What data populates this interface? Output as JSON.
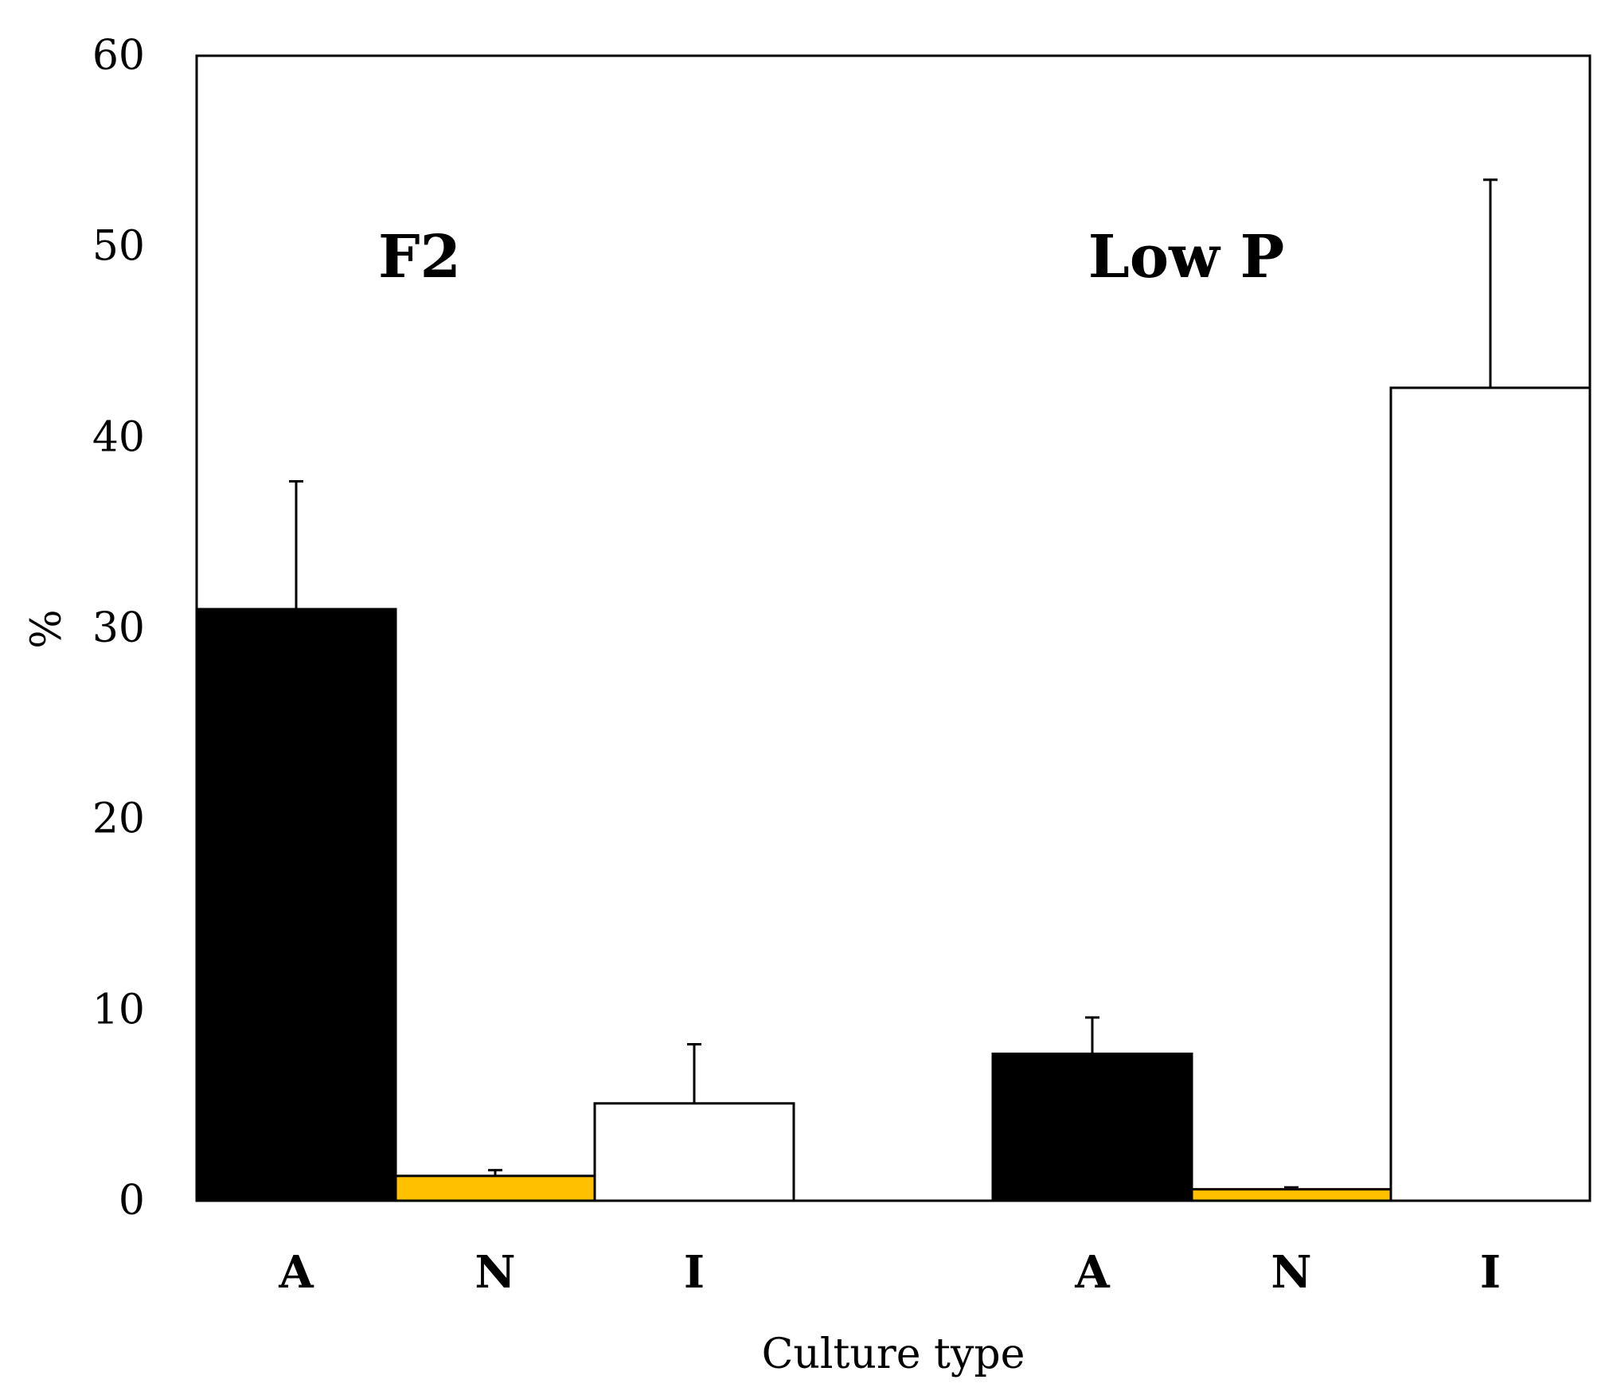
{
  "chart_data": {
    "type": "bar",
    "title": "",
    "xlabel": "Culture type",
    "ylabel": "%",
    "ylim": [
      0,
      60
    ],
    "yticks": [
      0,
      10,
      20,
      30,
      40,
      50,
      60
    ],
    "ytick_labels": [
      "0",
      "10",
      "20",
      "30",
      "40",
      "50",
      "60"
    ],
    "grid": false,
    "groups": [
      {
        "name": "F2",
        "bars": [
          {
            "category": "A",
            "value": 31.0,
            "error": 6.7,
            "color": "#000000"
          },
          {
            "category": "N",
            "value": 1.3,
            "error": 0.3,
            "color": "#FFC000"
          },
          {
            "category": "I",
            "value": 5.1,
            "error": 3.1,
            "color": "#FFFFFF"
          }
        ]
      },
      {
        "name": "Low P",
        "bars": [
          {
            "category": "A",
            "value": 7.7,
            "error": 1.9,
            "color": "#000000"
          },
          {
            "category": "N",
            "value": 0.6,
            "error": 0.1,
            "color": "#FFC000"
          },
          {
            "category": "I",
            "value": 42.6,
            "error": 10.9,
            "color": "#FFFFFF"
          }
        ]
      }
    ]
  }
}
